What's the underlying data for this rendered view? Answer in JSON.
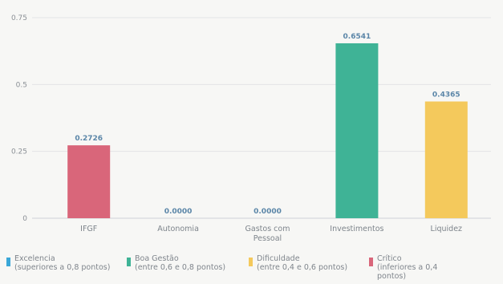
{
  "chart_data": {
    "type": "bar",
    "categories": [
      "IFGF",
      "Autonomia",
      "Gastos com Pessoal",
      "Investimentos",
      "Liquidez"
    ],
    "category_lines": [
      [
        "IFGF"
      ],
      [
        "Autonomia"
      ],
      [
        "Gastos com",
        "Pessoal"
      ],
      [
        "Investimentos"
      ],
      [
        "Liquidez"
      ]
    ],
    "values": [
      0.2726,
      0.0,
      0.0,
      0.6541,
      0.4365
    ],
    "value_labels": [
      "0.2726",
      "0.0000",
      "0.0000",
      "0.6541",
      "0.4365"
    ],
    "bar_colors": [
      "#d9667a",
      "#4dbea3",
      "#4dbea3",
      "#3fb396",
      "#f4c95c"
    ],
    "ylim": [
      0,
      0.75
    ],
    "yticks": [
      0,
      0.25,
      0.5,
      0.75
    ],
    "ytick_labels": [
      "0",
      "0.25",
      "0.5",
      "0.75"
    ],
    "grid": true,
    "legend_position": "bottom",
    "title": "",
    "xlabel": "",
    "ylabel": ""
  },
  "legend": [
    {
      "color": "#3aa7d8",
      "lines": [
        "Excelencia",
        "(superiores a 0,8 pontos)"
      ]
    },
    {
      "color": "#3fb396",
      "lines": [
        "Boa Gestão",
        "(entre 0,6 e 0,8 pontos)"
      ]
    },
    {
      "color": "#f4c95c",
      "lines": [
        "Dificuldade",
        "(entre 0,4 e 0,6 pontos)"
      ]
    },
    {
      "color": "#d9667a",
      "lines": [
        "Crítico",
        "(inferiores a 0,4",
        "pontos)"
      ]
    }
  ]
}
